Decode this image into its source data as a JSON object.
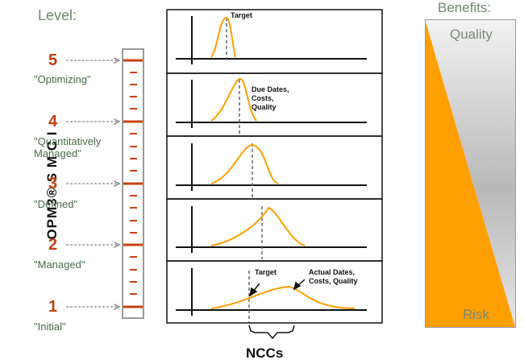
{
  "level_title": "Level:",
  "side_label": "OPM3® S M C I",
  "levels": [
    {
      "number": "5",
      "name": "\"Optimizing\""
    },
    {
      "number": "4",
      "name": "\"Quantitatively Managed\""
    },
    {
      "number": "3",
      "name": "\"Defined\""
    },
    {
      "number": "2",
      "name": "\"Managed\""
    },
    {
      "number": "1",
      "name": "\"Initial\""
    }
  ],
  "panels": {
    "target_top": "Target",
    "due_dates": "Due Dates, Costs, Quality",
    "target_bottom": "Target",
    "actual_dates": "Actual Dates, Costs, Quality"
  },
  "nccs_label": "NCCs",
  "benefits": {
    "title": "Benefits:",
    "quality": "Quality",
    "risk": "Risk"
  },
  "colors": {
    "orange": "#ff9f00",
    "level_red": "#c04010",
    "green_text": "#6b8a6b"
  }
}
